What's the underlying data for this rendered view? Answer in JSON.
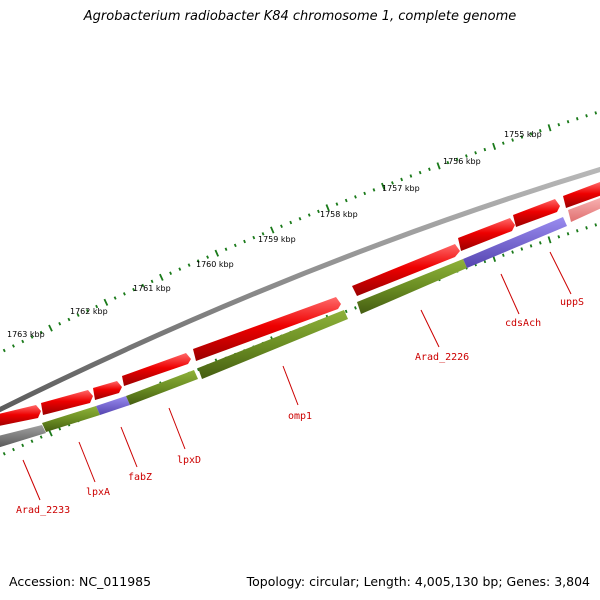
{
  "header": {
    "title": "Agrobacterium radiobacter K84 chromosome 1, complete genome"
  },
  "footer": {
    "accession": "Accession: NC_011985",
    "summary": "Topology: circular; Length: 4,005,130 bp; Genes: 3,804"
  },
  "colors": {
    "forward_gene": "#ee0000",
    "forward_gene_light": "#f08080",
    "reverse_gene": "#6b8e23",
    "reverse_gene_blue": "#6a5acd",
    "reverse_gene_gray": "#777777",
    "backbone": "#888888",
    "ticks": "#1a7a1a",
    "labels": "#cc0000"
  },
  "scale": {
    "kbp_labels": [
      "1755 kbp",
      "1756 kbp",
      "1757 kbp",
      "1758 kbp",
      "1759 kbp",
      "1760 kbp",
      "1761 kbp",
      "1762 kbp",
      "1763 kbp"
    ]
  },
  "genes": {
    "labels": [
      "uppS",
      "cdsAch",
      "Arad_2226",
      "omp1",
      "lpxD",
      "fabZ",
      "lpxA",
      "Arad_2233"
    ]
  }
}
